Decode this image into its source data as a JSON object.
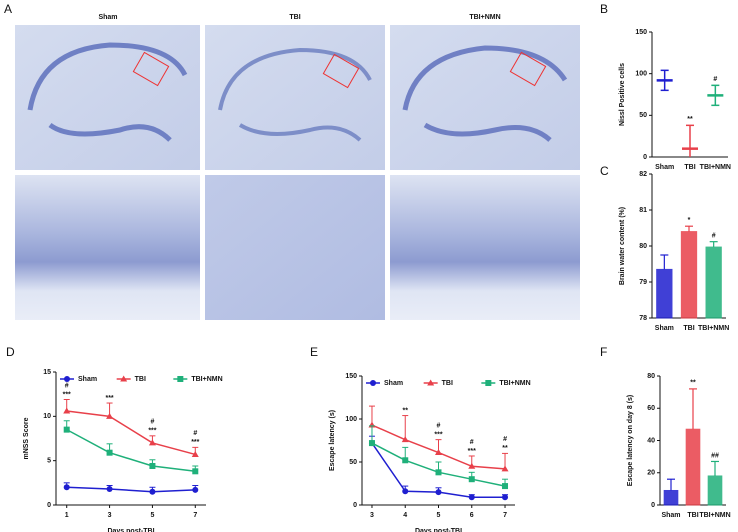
{
  "panel_a": {
    "label": "A",
    "columns": [
      "Sham",
      "TBI",
      "TBI+NMN"
    ]
  },
  "chart_data": [
    {
      "type": "errorbar",
      "panel": "B",
      "ylabel": "Nissl Positive cells",
      "categories": [
        "Sham",
        "TBI",
        "TBI+NMN"
      ],
      "values": [
        92,
        10,
        74
      ],
      "errors": [
        12,
        28,
        12
      ],
      "colors": [
        "#1f1fd0",
        "#e8404a",
        "#1fb07a"
      ],
      "annotations": [
        null,
        "**",
        "#"
      ],
      "ylim": [
        0,
        150
      ],
      "yticks": [
        0,
        50,
        100,
        150
      ]
    },
    {
      "type": "bar",
      "panel": "C",
      "ylabel": "Brain water content (%)",
      "categories": [
        "Sham",
        "TBI",
        "TBI+NMN"
      ],
      "values": [
        79.35,
        80.4,
        79.97
      ],
      "errors": [
        0.4,
        0.15,
        0.15
      ],
      "colors": [
        "#1f1fd0",
        "#e8404a",
        "#1fb07a"
      ],
      "annotations": [
        null,
        "*",
        "#"
      ],
      "ylim": [
        78,
        82
      ],
      "yticks": [
        78,
        79,
        80,
        81,
        82
      ]
    },
    {
      "type": "line",
      "panel": "D",
      "ylabel": "mNSS Score",
      "xlabel": "Days post-TBI",
      "x": [
        1,
        3,
        5,
        7
      ],
      "xlim": [
        0.5,
        7.5
      ],
      "xticks": [
        1,
        3,
        5,
        7
      ],
      "ylim": [
        0,
        15
      ],
      "yticks": [
        0,
        5,
        10,
        15
      ],
      "series": [
        {
          "name": "Sham",
          "color": "#1f1fd0",
          "marker": "circle",
          "values": [
            2,
            1.8,
            1.5,
            1.7
          ],
          "errors": [
            0.5,
            0.4,
            0.5,
            0.5
          ],
          "annotations": [
            null,
            null,
            null,
            null
          ]
        },
        {
          "name": "TBI",
          "color": "#e8404a",
          "marker": "triangle",
          "values": [
            10.6,
            10,
            7,
            5.7
          ],
          "errors": [
            1.3,
            1.5,
            0.8,
            0.8
          ],
          "annotations": [
            [
              "#",
              "***"
            ],
            [
              "***"
            ],
            [
              "#",
              "***"
            ],
            [
              "#",
              "***"
            ]
          ]
        },
        {
          "name": "TBI+NMN",
          "color": "#1fb07a",
          "marker": "square",
          "values": [
            8.5,
            5.9,
            4.4,
            3.8
          ],
          "errors": [
            1,
            1,
            0.7,
            0.6
          ],
          "annotations": [
            null,
            null,
            null,
            null
          ]
        }
      ]
    },
    {
      "type": "line",
      "panel": "E",
      "ylabel": "Escape latency (s)",
      "xlabel": "Days post-TBI",
      "x": [
        3,
        4,
        5,
        6,
        7
      ],
      "xlim": [
        2.7,
        7.3
      ],
      "xticks": [
        3,
        4,
        5,
        6,
        7
      ],
      "ylim": [
        0,
        150
      ],
      "yticks": [
        0,
        50,
        100,
        150
      ],
      "series": [
        {
          "name": "Sham",
          "color": "#1f1fd0",
          "marker": "circle",
          "values": [
            72,
            16,
            15,
            9,
            9
          ],
          "errors": [
            8,
            6,
            5,
            3,
            3
          ],
          "annotations": [
            null,
            null,
            null,
            null,
            null
          ]
        },
        {
          "name": "TBI",
          "color": "#e8404a",
          "marker": "triangle",
          "values": [
            93,
            76,
            61,
            45,
            42
          ],
          "errors": [
            22,
            28,
            15,
            12,
            18
          ],
          "annotations": [
            null,
            [
              "**"
            ],
            [
              "#",
              "***"
            ],
            [
              "#",
              "***"
            ],
            [
              "#",
              "**"
            ]
          ]
        },
        {
          "name": "TBI+NMN",
          "color": "#1fb07a",
          "marker": "square",
          "values": [
            72,
            52,
            38,
            30,
            22
          ],
          "errors": [
            20,
            15,
            12,
            8,
            8
          ],
          "annotations": [
            null,
            null,
            null,
            null,
            null
          ]
        }
      ]
    },
    {
      "type": "bar",
      "panel": "F",
      "ylabel": "Escape latency on day 8 (s)",
      "categories": [
        "Sham",
        "TBI",
        "TBI+NMN"
      ],
      "values": [
        9,
        47,
        18
      ],
      "errors": [
        7,
        25,
        9
      ],
      "colors": [
        "#1f1fd0",
        "#e8404a",
        "#1fb07a"
      ],
      "annotations": [
        null,
        "**",
        "##"
      ],
      "ylim": [
        0,
        80
      ],
      "yticks": [
        0,
        20,
        40,
        60,
        80
      ]
    }
  ]
}
